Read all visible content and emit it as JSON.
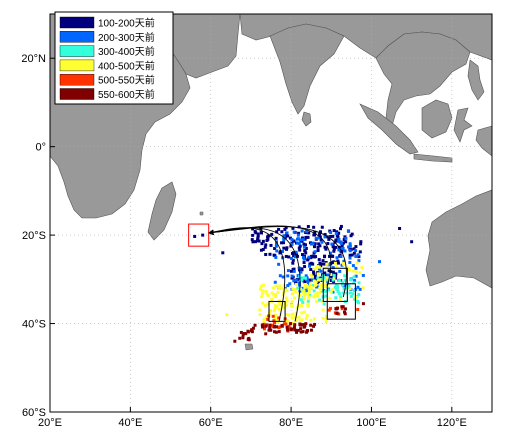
{
  "map": {
    "lon_range": [
      20,
      130
    ],
    "lat_range": [
      -60,
      30
    ],
    "grid": true,
    "land_color": "#999999",
    "ocean_color": "#ffffff",
    "lon_ticks": [
      {
        "value": 20,
        "label": "20°E"
      },
      {
        "value": 40,
        "label": "40°E"
      },
      {
        "value": 60,
        "label": "60°E"
      },
      {
        "value": 80,
        "label": "80°E"
      },
      {
        "value": 100,
        "label": "100°E"
      },
      {
        "value": 120,
        "label": "120°E"
      }
    ],
    "lat_ticks": [
      {
        "value": 20,
        "label": "20°N"
      },
      {
        "value": 0,
        "label": "0°"
      },
      {
        "value": -20,
        "label": "20°S"
      },
      {
        "value": -40,
        "label": "40°S"
      },
      {
        "value": -60,
        "label": "60°S"
      }
    ]
  },
  "legend": {
    "placement": "top-left",
    "items": [
      {
        "label": "100-200天前",
        "color": "#00007f"
      },
      {
        "label": "200-300天前",
        "color": "#0066ff"
      },
      {
        "label": "300-400天前",
        "color": "#33ffdd"
      },
      {
        "label": "400-500天前",
        "color": "#ffff33"
      },
      {
        "label": "500-550天前",
        "color": "#ff3300"
      },
      {
        "label": "550-600天前",
        "color": "#800000"
      }
    ]
  },
  "boxes": [
    {
      "color": "#ff0000",
      "lon": [
        54.5,
        59.5
      ],
      "lat": [
        -17.5,
        -22.5
      ]
    },
    {
      "color": "#000000",
      "lon": [
        74.5,
        78.5
      ],
      "lat": [
        -35.0,
        -39.5
      ]
    },
    {
      "color": "#000000",
      "lon": [
        88.0,
        94.0
      ],
      "lat": [
        -27.5,
        -35.0
      ]
    },
    {
      "color": "#000000",
      "lon": [
        89.0,
        96.0
      ],
      "lat": [
        -31.0,
        -39.0
      ]
    }
  ],
  "trajectories": [
    {
      "from": [
        77,
        -39.5
      ],
      "to": [
        59.5,
        -19.5
      ]
    },
    {
      "from": [
        81,
        -39.5
      ],
      "to": [
        59.5,
        -19.5
      ]
    },
    {
      "from": [
        89,
        -31.5
      ],
      "to": [
        59.5,
        -19.5
      ]
    },
    {
      "from": [
        93,
        -34.0
      ],
      "to": [
        59.5,
        -19.5
      ]
    }
  ],
  "clusters": [
    {
      "category": 0,
      "lon": [
        70,
        98
      ],
      "lat": [
        -18,
        -25
      ],
      "n": 170,
      "seed": 11
    },
    {
      "category": 0,
      "lon": [
        80,
        92
      ],
      "lat": [
        -25,
        -31
      ],
      "n": 70,
      "seed": 12
    },
    {
      "category": 1,
      "lon": [
        76,
        98
      ],
      "lat": [
        -19,
        -33
      ],
      "n": 130,
      "seed": 21
    },
    {
      "category": 2,
      "lon": [
        80,
        97
      ],
      "lat": [
        -29,
        -36
      ],
      "n": 70,
      "seed": 31
    },
    {
      "category": 3,
      "lon": [
        72,
        89
      ],
      "lat": [
        -31,
        -40
      ],
      "n": 140,
      "seed": 41
    },
    {
      "category": 3,
      "lon": [
        84,
        98
      ],
      "lat": [
        -26,
        -35
      ],
      "n": 45,
      "seed": 42
    },
    {
      "category": 4,
      "lon": [
        73,
        80
      ],
      "lat": [
        -38,
        -42
      ],
      "n": 22,
      "seed": 51
    },
    {
      "category": 4,
      "lon": [
        89,
        97
      ],
      "lat": [
        -35,
        -38
      ],
      "n": 8,
      "seed": 52
    },
    {
      "category": 5,
      "lon": [
        68,
        86
      ],
      "lat": [
        -40,
        -42
      ],
      "n": 55,
      "seed": 61
    },
    {
      "category": 5,
      "lon": [
        66,
        74
      ],
      "lat": [
        -42,
        -44
      ],
      "n": 10,
      "seed": 62
    },
    {
      "category": 5,
      "lon": [
        91,
        94
      ],
      "lat": [
        -36,
        -38
      ],
      "n": 10,
      "seed": 63
    }
  ],
  "scatter_dots": [
    {
      "category": 0,
      "lon": 107,
      "lat": -18.5
    },
    {
      "category": 0,
      "lon": 110,
      "lat": -21.5
    },
    {
      "category": 1,
      "lon": 102,
      "lat": -26.0
    },
    {
      "category": 0,
      "lon": 56,
      "lat": -20.3
    },
    {
      "category": 0,
      "lon": 58,
      "lat": -20.0
    },
    {
      "category": 0,
      "lon": 63,
      "lat": -24.0
    },
    {
      "category": 3,
      "lon": 64,
      "lat": -38.0
    },
    {
      "category": 5,
      "lon": 66,
      "lat": -44.0
    },
    {
      "category": 5,
      "lon": 98,
      "lat": -35.5
    }
  ]
}
